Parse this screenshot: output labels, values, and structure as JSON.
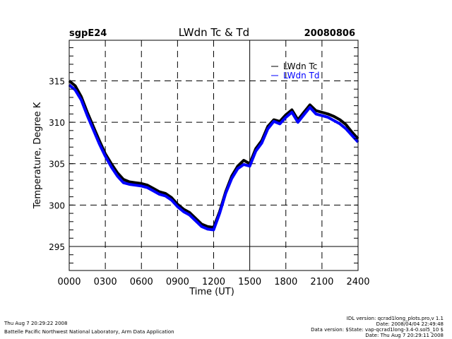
{
  "chart_data": {
    "type": "line",
    "title": "LWdn Tc & Td",
    "site_label": "sgpE24",
    "date_label": "20080806",
    "xlabel": "Time (UT)",
    "ylabel": "Temperature, Degree K",
    "xlim": [
      0,
      24
    ],
    "ylim": [
      292.1,
      319.9
    ],
    "x_ticks": [
      0,
      3,
      6,
      9,
      12,
      15,
      18,
      21,
      24
    ],
    "x_tick_labels": [
      "0000",
      "0300",
      "0600",
      "0900",
      "1200",
      "1500",
      "1800",
      "2100",
      "2400"
    ],
    "y_ticks": [
      295,
      300,
      305,
      310,
      315
    ],
    "y_tick_labels": [
      "295",
      "300",
      "305",
      "310",
      "315"
    ],
    "grid": "dashed at major ticks",
    "legend_position": "top-right",
    "x": [
      0,
      0.5,
      1,
      1.5,
      2,
      2.5,
      3,
      3.5,
      4,
      4.5,
      5,
      5.5,
      6,
      6.5,
      7,
      7.5,
      8,
      8.5,
      9,
      9.5,
      10,
      10.5,
      11,
      11.5,
      12,
      12.5,
      13,
      13.5,
      14,
      14.5,
      15,
      15.5,
      16,
      16.5,
      17,
      17.5,
      18,
      18.5,
      19,
      19.5,
      20,
      20.5,
      21,
      21.5,
      22,
      22.5,
      23,
      23.5,
      24
    ],
    "series": [
      {
        "name": "LWdn Tc",
        "color": "#000000",
        "values": [
          315.0,
          314.4,
          313.1,
          311.2,
          309.5,
          307.8,
          306.2,
          305.0,
          303.9,
          303.1,
          302.8,
          302.7,
          302.6,
          302.4,
          302.0,
          301.6,
          301.4,
          300.9,
          300.1,
          299.5,
          299.1,
          298.4,
          297.7,
          297.4,
          297.3,
          299.2,
          301.6,
          303.5,
          304.7,
          305.4,
          305.0,
          306.8,
          307.8,
          309.5,
          310.3,
          310.1,
          310.9,
          311.5,
          310.3,
          311.2,
          312.1,
          311.4,
          311.2,
          311.0,
          310.7,
          310.3,
          309.7,
          308.8,
          308.0
        ]
      },
      {
        "name": "LWdn Td",
        "color": "#0000ff",
        "values": [
          314.5,
          313.9,
          312.7,
          310.8,
          309.1,
          307.4,
          305.9,
          304.6,
          303.5,
          302.7,
          302.5,
          302.4,
          302.3,
          302.1,
          301.7,
          301.3,
          301.1,
          300.6,
          299.8,
          299.2,
          298.8,
          298.1,
          297.4,
          297.1,
          297.0,
          299.0,
          301.4,
          303.2,
          304.4,
          304.9,
          304.7,
          306.5,
          307.5,
          309.2,
          310.1,
          309.8,
          310.6,
          311.2,
          310.0,
          310.9,
          311.8,
          311.0,
          310.8,
          310.6,
          310.2,
          309.8,
          309.2,
          308.4,
          307.6
        ]
      }
    ]
  },
  "footer": {
    "left_line1": "Thu Aug  7 20:29:22 2008",
    "left_line2": "Battelle Pacific Northwest National Laboratory, Arm Data Application",
    "right_line1": "IDL version: qcrad1long_plots.pro,v 1.1",
    "right_line2": "Date: 2008/04/04 22:49:48",
    "right_line3": "Data version: $State: vap-qcrad1long-3.4-0.sol5_10 $",
    "right_line4": "Date: Thu Aug  7 20:29:11 2008"
  }
}
